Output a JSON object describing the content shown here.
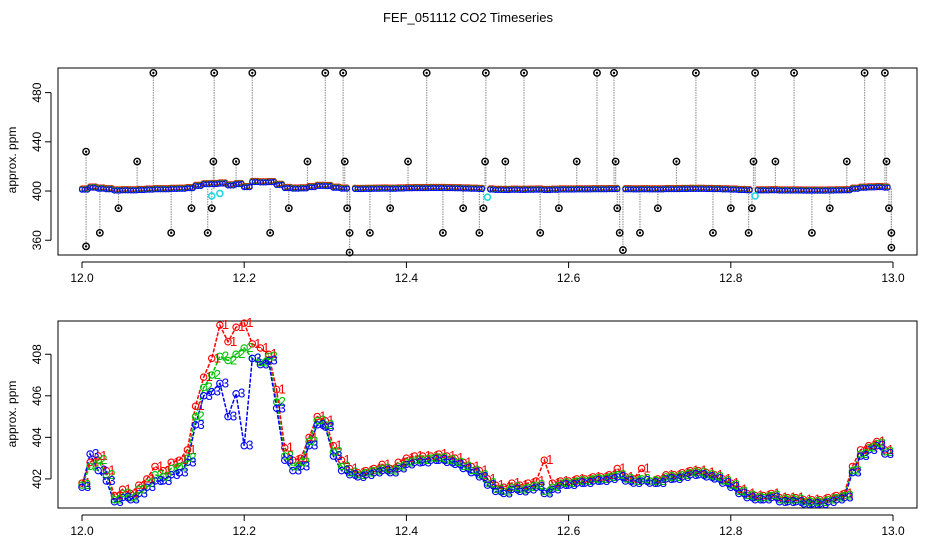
{
  "title": "FEF_051112  CO2 Timeseries",
  "colors": {
    "black": "#000000",
    "grey": "#9a9a9a",
    "red": "#ff0000",
    "green": "#00c000",
    "blue": "#0000ff",
    "cyan": "#22d8e0"
  },
  "chart_data": [
    {
      "type": "scatter",
      "xlabel": "",
      "ylabel": "approx. ppm",
      "xlim": [
        12.0,
        13.0
      ],
      "ylim": [
        348,
        500
      ],
      "xticks": [
        "12.0",
        "12.2",
        "12.4",
        "12.6",
        "12.8",
        "13.0"
      ],
      "yticks": [
        "360",
        "400",
        "440",
        "480"
      ],
      "series": [
        {
          "marker": "open-circle",
          "color": "black",
          "spikes": [
            [
              12.005,
              402,
              432
            ],
            [
              12.005,
              402,
              355
            ],
            [
              12.022,
              402,
              366
            ],
            [
              12.045,
              402,
              386
            ],
            [
              12.068,
              402,
              424
            ],
            [
              12.088,
              402,
              496
            ],
            [
              12.11,
              402,
              366
            ],
            [
              12.135,
              402,
              386
            ],
            [
              12.155,
              402,
              366
            ],
            [
              12.16,
              402,
              386
            ],
            [
              12.162,
              402,
              424
            ],
            [
              12.163,
              402,
              496
            ],
            [
              12.19,
              402,
              424
            ],
            [
              12.21,
              402,
              496
            ],
            [
              12.232,
              402,
              366
            ],
            [
              12.255,
              402,
              386
            ],
            [
              12.278,
              402,
              424
            ],
            [
              12.3,
              402,
              496
            ],
            [
              12.322,
              402,
              496
            ],
            [
              12.324,
              402,
              424
            ],
            [
              12.327,
              402,
              386
            ],
            [
              12.33,
              402,
              366
            ],
            [
              12.33,
              402,
              350
            ],
            [
              12.355,
              402,
              366
            ],
            [
              12.38,
              402,
              386
            ],
            [
              12.402,
              402,
              424
            ],
            [
              12.425,
              402,
              496
            ],
            [
              12.445,
              402,
              366
            ],
            [
              12.47,
              402,
              386
            ],
            [
              12.49,
              402,
              366
            ],
            [
              12.495,
              402,
              386
            ],
            [
              12.497,
              402,
              424
            ],
            [
              12.498,
              402,
              496
            ],
            [
              12.522,
              402,
              424
            ],
            [
              12.545,
              402,
              496
            ],
            [
              12.565,
              402,
              366
            ],
            [
              12.588,
              402,
              386
            ],
            [
              12.61,
              402,
              424
            ],
            [
              12.635,
              402,
              496
            ],
            [
              12.656,
              402,
              496
            ],
            [
              12.658,
              402,
              424
            ],
            [
              12.66,
              402,
              386
            ],
            [
              12.663,
              402,
              366
            ],
            [
              12.667,
              402,
              352
            ],
            [
              12.688,
              402,
              366
            ],
            [
              12.71,
              402,
              386
            ],
            [
              12.733,
              402,
              424
            ],
            [
              12.757,
              402,
              496
            ],
            [
              12.778,
              402,
              366
            ],
            [
              12.8,
              402,
              386
            ],
            [
              12.822,
              402,
              366
            ],
            [
              12.826,
              402,
              386
            ],
            [
              12.828,
              402,
              424
            ],
            [
              12.83,
              402,
              496
            ],
            [
              12.855,
              402,
              424
            ],
            [
              12.878,
              402,
              496
            ],
            [
              12.9,
              402,
              366
            ],
            [
              12.922,
              402,
              386
            ],
            [
              12.943,
              402,
              424
            ],
            [
              12.965,
              402,
              496
            ],
            [
              12.99,
              402,
              496
            ],
            [
              12.992,
              402,
              424
            ],
            [
              12.995,
              402,
              386
            ],
            [
              12.998,
              402,
              366
            ],
            [
              12.998,
              402,
              354
            ]
          ]
        },
        {
          "marker": "open-circle",
          "color": "cyan",
          "points": [
            [
              12.16,
              396
            ],
            [
              12.17,
              398
            ],
            [
              12.5,
              395
            ],
            [
              12.83,
              396
            ]
          ]
        }
      ]
    },
    {
      "type": "line",
      "xlabel": "",
      "ylabel": "approx. ppm",
      "xlim": [
        12.0,
        13.0
      ],
      "ylim": [
        400.6,
        409.6
      ],
      "xticks": [
        "12.0",
        "12.2",
        "12.4",
        "12.6",
        "12.8",
        "13.0"
      ],
      "yticks": [
        "402",
        "404",
        "406",
        "408"
      ],
      "x": [
        12.0,
        12.01,
        12.02,
        12.03,
        12.04,
        12.05,
        12.06,
        12.07,
        12.08,
        12.09,
        12.1,
        12.11,
        12.12,
        12.13,
        12.14,
        12.15,
        12.16,
        12.17,
        12.18,
        12.19,
        12.2,
        12.21,
        12.22,
        12.23,
        12.24,
        12.25,
        12.26,
        12.27,
        12.28,
        12.29,
        12.3,
        12.31,
        12.32,
        12.33,
        12.34,
        12.35,
        12.36,
        12.37,
        12.38,
        12.39,
        12.4,
        12.41,
        12.42,
        12.43,
        12.44,
        12.45,
        12.46,
        12.47,
        12.48,
        12.49,
        12.5,
        12.51,
        12.52,
        12.53,
        12.54,
        12.55,
        12.56,
        12.57,
        12.58,
        12.59,
        12.6,
        12.61,
        12.62,
        12.63,
        12.64,
        12.65,
        12.66,
        12.67,
        12.68,
        12.69,
        12.7,
        12.71,
        12.72,
        12.73,
        12.74,
        12.75,
        12.76,
        12.77,
        12.78,
        12.79,
        12.8,
        12.81,
        12.82,
        12.83,
        12.84,
        12.85,
        12.86,
        12.87,
        12.88,
        12.89,
        12.9,
        12.91,
        12.92,
        12.93,
        12.94,
        12.95,
        12.96,
        12.97,
        12.98,
        12.99
      ],
      "series": [
        {
          "label": "1",
          "color": "red",
          "values": [
            401.8,
            402.8,
            403.1,
            402.4,
            401.2,
            401.5,
            401.3,
            401.7,
            402.0,
            402.6,
            402.4,
            402.8,
            402.9,
            403.4,
            405.5,
            406.9,
            407.8,
            409.4,
            408.6,
            409.3,
            409.5,
            408.5,
            408.3,
            408.0,
            406.3,
            403.5,
            402.9,
            403.0,
            404.0,
            405.0,
            404.8,
            403.6,
            402.9,
            402.5,
            402.3,
            402.4,
            402.5,
            402.7,
            402.5,
            402.8,
            403.0,
            403.1,
            403.1,
            403.1,
            403.2,
            403.1,
            403.0,
            402.8,
            402.6,
            402.4,
            402.0,
            401.7,
            401.6,
            401.8,
            401.7,
            401.8,
            401.9,
            402.9,
            401.8,
            401.9,
            401.9,
            402.0,
            402.0,
            402.1,
            402.1,
            402.2,
            402.5,
            402.1,
            402.0,
            402.5,
            401.9,
            402.0,
            402.2,
            402.2,
            402.3,
            402.4,
            402.4,
            402.3,
            402.2,
            402.0,
            401.8,
            401.5,
            401.3,
            401.2,
            401.2,
            401.3,
            401.1,
            401.1,
            401.1,
            401.0,
            401.0,
            401.0,
            401.1,
            401.2,
            401.3,
            402.6,
            403.4,
            403.6,
            403.8,
            403.4
          ]
        },
        {
          "label": "2",
          "color": "green",
          "values": [
            401.7,
            402.6,
            402.9,
            402.2,
            401.0,
            401.3,
            401.1,
            401.5,
            401.8,
            402.2,
            402.1,
            402.5,
            402.6,
            403.0,
            405.0,
            406.4,
            407.0,
            407.9,
            407.7,
            408.0,
            408.3,
            407.8,
            407.6,
            407.9,
            405.7,
            403.1,
            402.6,
            402.8,
            403.8,
            404.8,
            404.6,
            403.3,
            402.6,
            402.3,
            402.2,
            402.3,
            402.4,
            402.5,
            402.4,
            402.6,
            402.8,
            402.9,
            402.9,
            403.0,
            403.0,
            402.9,
            402.8,
            402.6,
            402.4,
            402.2,
            401.8,
            401.5,
            401.4,
            401.6,
            401.5,
            401.6,
            401.7,
            401.4,
            401.6,
            401.8,
            401.8,
            401.9,
            401.9,
            402.0,
            402.0,
            402.1,
            402.2,
            402.0,
            401.9,
            402.0,
            401.9,
            401.9,
            402.1,
            402.1,
            402.2,
            402.3,
            402.3,
            402.2,
            402.1,
            401.9,
            401.7,
            401.4,
            401.2,
            401.1,
            401.1,
            401.2,
            401.0,
            401.0,
            401.0,
            400.9,
            400.9,
            400.9,
            401.0,
            401.1,
            401.2,
            402.4,
            403.2,
            403.5,
            403.7,
            403.3
          ]
        },
        {
          "label": "3",
          "color": "blue",
          "values": [
            401.6,
            403.2,
            402.4,
            401.9,
            400.9,
            401.1,
            401.0,
            401.3,
            401.6,
            401.9,
            401.9,
            402.2,
            402.3,
            402.8,
            404.6,
            406.0,
            406.2,
            406.6,
            405.0,
            406.1,
            403.6,
            407.8,
            407.5,
            407.7,
            405.4,
            402.9,
            402.4,
            402.6,
            403.6,
            404.6,
            404.5,
            403.1,
            402.4,
            402.2,
            402.1,
            402.2,
            402.3,
            402.4,
            402.3,
            402.5,
            402.7,
            402.8,
            402.8,
            402.9,
            402.9,
            402.8,
            402.7,
            402.5,
            402.3,
            402.1,
            401.7,
            401.4,
            401.3,
            401.5,
            401.4,
            401.5,
            401.6,
            401.3,
            401.5,
            401.7,
            401.7,
            401.8,
            401.8,
            401.9,
            401.9,
            402.0,
            402.1,
            401.9,
            401.8,
            401.9,
            401.8,
            401.8,
            402.0,
            402.0,
            402.1,
            402.2,
            402.2,
            402.1,
            402.0,
            401.8,
            401.6,
            401.3,
            401.1,
            401.0,
            401.0,
            401.1,
            400.9,
            400.9,
            400.9,
            400.8,
            400.8,
            400.8,
            400.9,
            401.0,
            401.1,
            402.3,
            403.1,
            403.4,
            403.6,
            403.2
          ]
        }
      ]
    }
  ]
}
